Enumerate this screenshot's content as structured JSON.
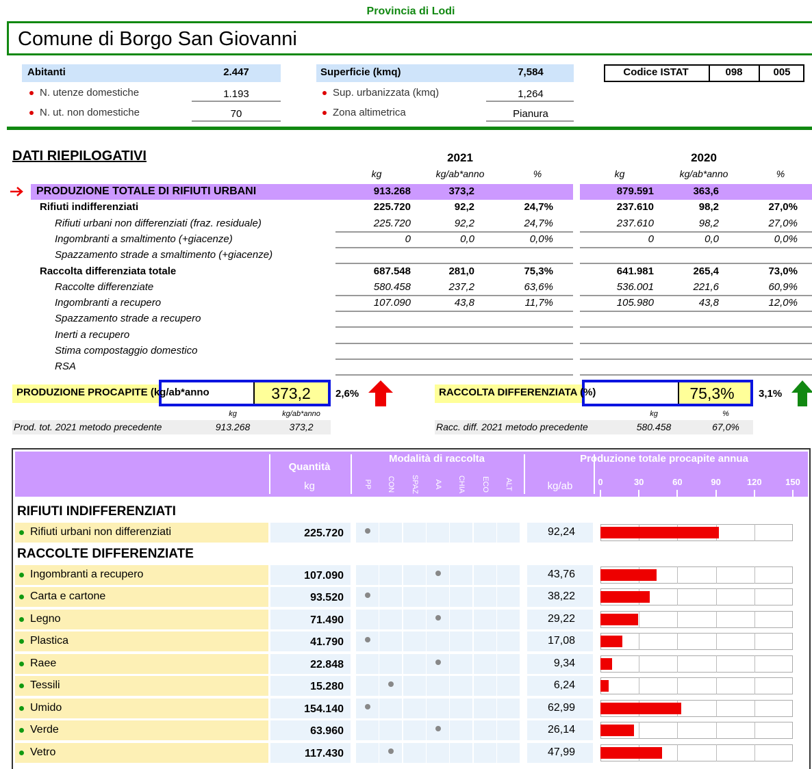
{
  "header": {
    "province": "Provincia di Lodi",
    "title": "Comune di Borgo San Giovanni"
  },
  "info": {
    "left": [
      {
        "label": "Abitanti",
        "value": "2.447"
      },
      {
        "label": "N. utenze domestiche",
        "value": "1.193"
      },
      {
        "label": "N. ut. non domestiche",
        "value": "70"
      }
    ],
    "middle": [
      {
        "label": "Superficie (kmq)",
        "value": "7,584"
      },
      {
        "label": "Sup. urbanizzata (kmq)",
        "value": "1,264"
      },
      {
        "label": "Zona altimetrica",
        "value": "Pianura"
      }
    ],
    "istat": {
      "label": "Codice ISTAT",
      "codes": [
        "098",
        "005"
      ]
    }
  },
  "summary": {
    "title": "DATI RIEPILOGATIVI",
    "years": [
      "2021",
      "2020"
    ],
    "columns": [
      "kg",
      "kg/ab*anno",
      "%"
    ],
    "rows": [
      {
        "label": "PRODUZIONE TOTALE DI RIFIUTI URBANI",
        "style": "total",
        "values": [
          [
            "913.268",
            "373,2",
            null
          ],
          [
            "879.591",
            "363,6",
            null
          ]
        ]
      },
      {
        "label": "Rifiuti indifferenziati",
        "style": "group",
        "values": [
          [
            "225.720",
            "92,2",
            "24,7%"
          ],
          [
            "237.610",
            "98,2",
            "27,0%"
          ]
        ]
      },
      {
        "label": "Rifiuti urbani non differenziati (fraz. residuale)",
        "style": "item",
        "values": [
          [
            "225.720",
            "92,2",
            "24,7%"
          ],
          [
            "237.610",
            "98,2",
            "27,0%"
          ]
        ]
      },
      {
        "label": "Ingombranti a smaltimento (+giacenze)",
        "style": "item",
        "values": [
          [
            "0",
            "0,0",
            "0,0%"
          ],
          [
            "0",
            "0,0",
            "0,0%"
          ]
        ]
      },
      {
        "label": "Spazzamento strade a smaltimento (+giacenze)",
        "style": "item",
        "values": [
          [
            null,
            null,
            null
          ],
          [
            null,
            null,
            null
          ]
        ]
      },
      {
        "label": "Raccolta differenziata totale",
        "style": "group",
        "values": [
          [
            "687.548",
            "281,0",
            "75,3%"
          ],
          [
            "641.981",
            "265,4",
            "73,0%"
          ]
        ]
      },
      {
        "label": "Raccolte differenziate",
        "style": "item",
        "values": [
          [
            "580.458",
            "237,2",
            "63,6%"
          ],
          [
            "536.001",
            "221,6",
            "60,9%"
          ]
        ]
      },
      {
        "label": "Ingombranti a recupero",
        "style": "item",
        "values": [
          [
            "107.090",
            "43,8",
            "11,7%"
          ],
          [
            "105.980",
            "43,8",
            "12,0%"
          ]
        ]
      },
      {
        "label": "Spazzamento strade a recupero",
        "style": "item",
        "values": [
          [
            null,
            null,
            null
          ],
          [
            null,
            null,
            null
          ]
        ]
      },
      {
        "label": "Inerti a recupero",
        "style": "item",
        "values": [
          [
            null,
            null,
            null
          ],
          [
            null,
            null,
            null
          ]
        ]
      },
      {
        "label": "Stima compostaggio domestico",
        "style": "item",
        "values": [
          [
            null,
            null,
            null
          ],
          [
            null,
            null,
            null
          ]
        ]
      },
      {
        "label": "RSA",
        "style": "item",
        "values": [
          [
            null,
            null,
            null
          ],
          [
            null,
            null,
            null
          ]
        ]
      }
    ]
  },
  "kpis": [
    {
      "label": "PRODUZIONE PROCAPITE (kg/ab*anno",
      "value": "373,2",
      "change": "2,6%",
      "units": [
        "kg",
        "kg/ab*anno"
      ],
      "previous_label": "Prod. tot. 2021 metodo precedente",
      "previous_values": [
        "913.268",
        "373,2"
      ]
    },
    {
      "label": "RACCOLTA DIFFERENZIATA (%)",
      "value": "75,3%",
      "change": "3,1%",
      "units": [
        "kg",
        "%"
      ],
      "previous_label": "Racc. diff. 2021 metodo precedente",
      "previous_values": [
        "580.458",
        "67,0%"
      ]
    }
  ],
  "detail": {
    "quantity_title": "Quantità",
    "quantity_unit": "kg",
    "modality_title": "Modalità di raccolta",
    "modalities": [
      "PP",
      "CON",
      "SPAZ",
      "AA",
      "CHIA",
      "ECO",
      "ALT"
    ],
    "per_capita_unit": "kg/ab",
    "chart_title": "Produzione totale procapite annua",
    "xlim": [
      0,
      150
    ],
    "xticks": [
      0,
      30,
      60,
      90,
      120,
      150
    ],
    "bar_color": "#ee0000",
    "groups": [
      {
        "title": "RIFIUTI INDIFFERENZIATI",
        "rows": [
          {
            "label": "Rifiuti urbani non differenziati",
            "kg": "225.720",
            "modality": "PP",
            "value": 92.24,
            "value_label": "92,24"
          }
        ]
      },
      {
        "title": "RACCOLTE DIFFERENZIATE",
        "rows": [
          {
            "label": "Ingombranti a recupero",
            "kg": "107.090",
            "modality": "AA",
            "value": 43.76,
            "value_label": "43,76"
          },
          {
            "label": "Carta e cartone",
            "kg": "93.520",
            "modality": "PP",
            "value": 38.22,
            "value_label": "38,22"
          },
          {
            "label": "Legno",
            "kg": "71.490",
            "modality": "AA",
            "value": 29.22,
            "value_label": "29,22"
          },
          {
            "label": "Plastica",
            "kg": "41.790",
            "modality": "PP",
            "value": 17.08,
            "value_label": "17,08"
          },
          {
            "label": "Raee",
            "kg": "22.848",
            "modality": "AA",
            "value": 9.34,
            "value_label": "9,34"
          },
          {
            "label": "Tessili",
            "kg": "15.280",
            "modality": "CON",
            "value": 6.24,
            "value_label": "6,24"
          },
          {
            "label": "Umido",
            "kg": "154.140",
            "modality": "PP",
            "value": 62.99,
            "value_label": "62,99"
          },
          {
            "label": "Verde",
            "kg": "63.960",
            "modality": "AA",
            "value": 26.14,
            "value_label": "26,14"
          },
          {
            "label": "Vetro",
            "kg": "117.430",
            "modality": "CON",
            "value": 47.99,
            "value_label": "47,99"
          }
        ]
      }
    ]
  }
}
